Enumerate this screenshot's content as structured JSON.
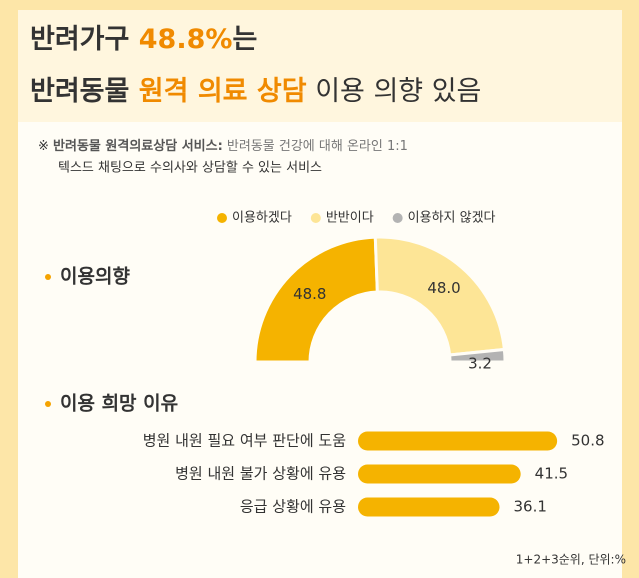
{
  "header": {
    "line1": [
      "반려가구 ",
      "48.8%",
      "는"
    ],
    "line2": [
      "반려동물 ",
      "원격 의료 상담",
      " 이용 의향 있음"
    ]
  },
  "note": {
    "mark": "※",
    "term": "반려동물 원격의료상담 서비스:",
    "text": " 반려동물 건강에 대해 온라인 1:1",
    "text2": "텍스드 채팅으로 수의사와 상담할 수 있는 서비스"
  },
  "chart_data": [
    {
      "type": "half-donut",
      "title": "이용의향",
      "categories": [
        "이용하겠다",
        "반반이다",
        "이용하지 않겠다"
      ],
      "values": [
        48.8,
        48.0,
        3.2
      ],
      "value_labels": [
        "48.8",
        "48.0",
        "3.2"
      ],
      "colors": [
        "#f5b300",
        "#fde596",
        "#b3b3b3"
      ],
      "legend": "top"
    },
    {
      "type": "hbar",
      "title": "이용 희망 이유",
      "categories": [
        "병원 내원 필요 여부 판단에 도움",
        "병원 내원 불가 상황에 유용",
        "응급 상황에 유용"
      ],
      "values": [
        50.8,
        41.5,
        36.1
      ],
      "color": "#f5b300"
    }
  ],
  "footnote": "1+2+3순위, 단위:%"
}
